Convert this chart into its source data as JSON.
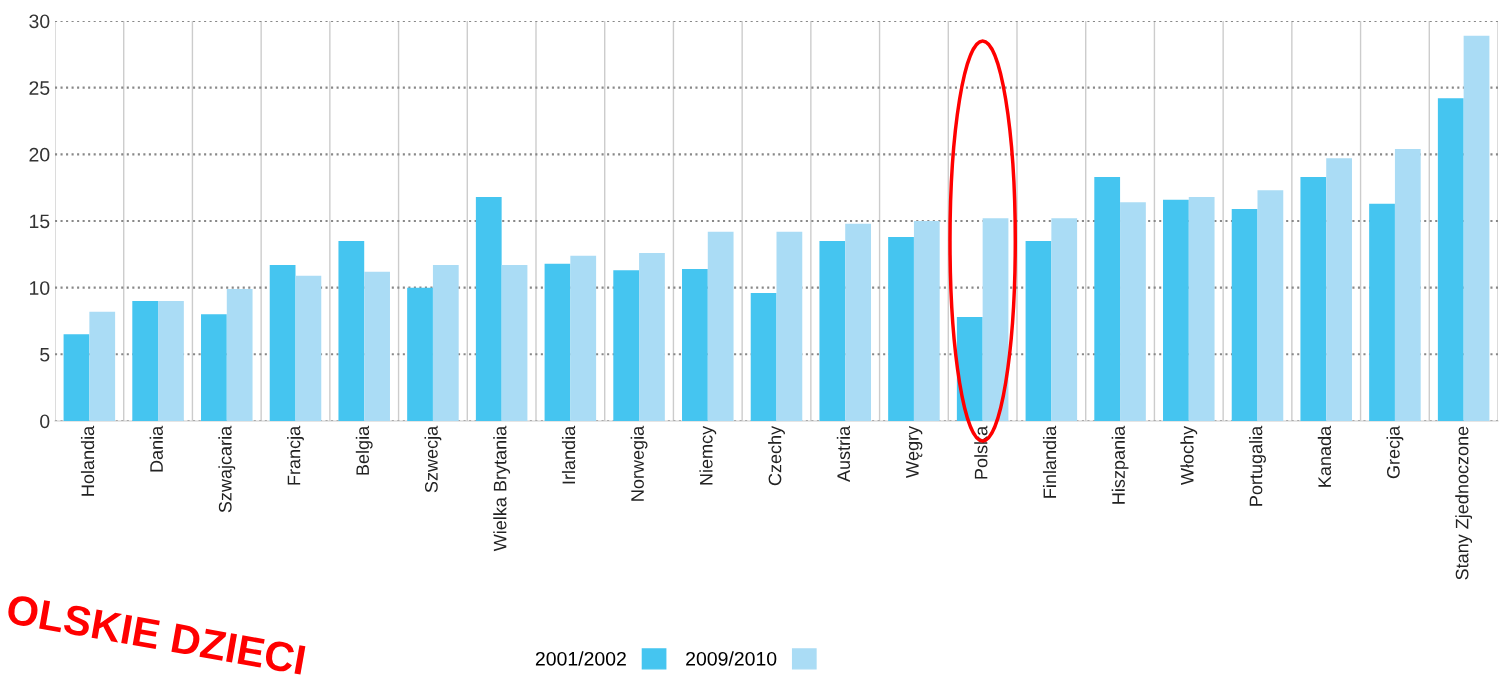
{
  "chart_data": {
    "type": "bar",
    "categories": [
      "Holandia",
      "Dania",
      "Szwajcaria",
      "Francja",
      "Belgia",
      "Szwecja",
      "Wielka Brytania",
      "Irlandia",
      "Norwegia",
      "Niemcy",
      "Czechy",
      "Austria",
      "Węgry",
      "Polska",
      "Finlandia",
      "Hiszpania",
      "Włochy",
      "Portugalia",
      "Kanada",
      "Grecja",
      "Stany Zjednoczone"
    ],
    "series": [
      {
        "name": "2001/2002",
        "color": "#45c5f0",
        "values": [
          6.5,
          9.0,
          8.0,
          11.7,
          13.5,
          10.0,
          16.8,
          11.8,
          11.3,
          11.4,
          9.6,
          13.5,
          13.8,
          7.8,
          13.5,
          18.3,
          16.6,
          15.9,
          18.3,
          16.3,
          24.2
        ]
      },
      {
        "name": "2009/2010",
        "color": "#aadcf5",
        "values": [
          8.2,
          9.0,
          9.9,
          10.9,
          11.2,
          11.7,
          11.7,
          12.4,
          12.6,
          14.2,
          14.2,
          14.8,
          15.0,
          15.2,
          15.2,
          16.4,
          16.8,
          17.3,
          19.7,
          20.4,
          28.9
        ]
      }
    ],
    "ylim": [
      0,
      30
    ],
    "yticks": [
      0,
      5,
      10,
      15,
      20,
      25,
      30
    ],
    "grid": true,
    "legend": "bottom",
    "annotations": [
      "OLSKIE DZIECI"
    ]
  }
}
